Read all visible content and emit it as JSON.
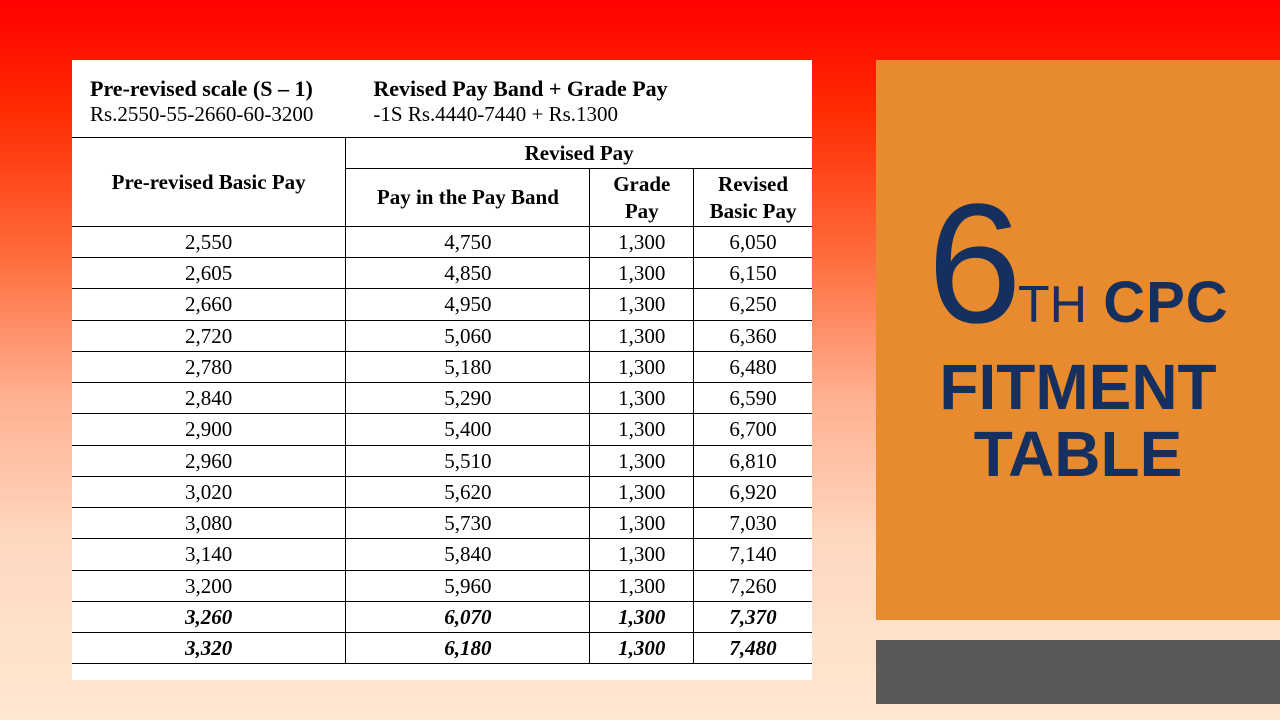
{
  "colors": {
    "bg_top": "#ff0000",
    "bg_bottom": "#ffe8d2",
    "paper": "#ffffff",
    "text": "#000000",
    "orange_panel": "#e88a2e",
    "gray_panel": "#595959",
    "navy": "#15305f"
  },
  "header": {
    "left_title": "Pre-revised scale (S – 1)",
    "left_sub": "Rs.2550-55-2660-60-3200",
    "right_title": "Revised Pay Band + Grade Pay",
    "right_sub": "-1S Rs.4440-7440 +  Rs.1300"
  },
  "table": {
    "type": "table",
    "col_header_prerevised": "Pre-revised Basic Pay",
    "col_header_revised_group": "Revised Pay",
    "col_header_payband": "Pay in the Pay Band",
    "col_header_gradepay": "Grade Pay",
    "col_header_revisedbasic": "Revised Basic Pay",
    "rows": [
      {
        "pre": "2,550",
        "band": "4,750",
        "grade": "1,300",
        "basic": "6,050",
        "italic": false
      },
      {
        "pre": "2,605",
        "band": "4,850",
        "grade": "1,300",
        "basic": "6,150",
        "italic": false
      },
      {
        "pre": "2,660",
        "band": "4,950",
        "grade": "1,300",
        "basic": "6,250",
        "italic": false
      },
      {
        "pre": "2,720",
        "band": "5,060",
        "grade": "1,300",
        "basic": "6,360",
        "italic": false
      },
      {
        "pre": "2,780",
        "band": "5,180",
        "grade": "1,300",
        "basic": "6,480",
        "italic": false
      },
      {
        "pre": "2,840",
        "band": "5,290",
        "grade": "1,300",
        "basic": "6,590",
        "italic": false
      },
      {
        "pre": "2,900",
        "band": "5,400",
        "grade": "1,300",
        "basic": "6,700",
        "italic": false
      },
      {
        "pre": "2,960",
        "band": "5,510",
        "grade": "1,300",
        "basic": "6,810",
        "italic": false
      },
      {
        "pre": "3,020",
        "band": "5,620",
        "grade": "1,300",
        "basic": "6,920",
        "italic": false
      },
      {
        "pre": "3,080",
        "band": "5,730",
        "grade": "1,300",
        "basic": "7,030",
        "italic": false
      },
      {
        "pre": "3,140",
        "band": "5,840",
        "grade": "1,300",
        "basic": "7,140",
        "italic": false
      },
      {
        "pre": "3,200",
        "band": "5,960",
        "grade": "1,300",
        "basic": "7,260",
        "italic": false
      },
      {
        "pre": "3,260",
        "band": "6,070",
        "grade": "1,300",
        "basic": "7,370",
        "italic": true
      },
      {
        "pre": "3,320",
        "band": "6,180",
        "grade": "1,300",
        "basic": "7,480",
        "italic": true
      }
    ],
    "column_widths_pct": [
      37,
      33,
      14,
      16
    ],
    "font_size_pt": 16
  },
  "sidebar": {
    "big_digit": "6",
    "th": "TH",
    "cpc": "CPC",
    "line2a": "FITMENT",
    "line2b": "TABLE"
  }
}
